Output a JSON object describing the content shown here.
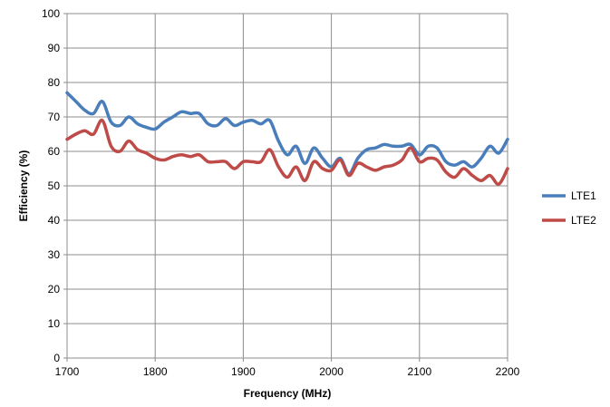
{
  "chart_data": {
    "type": "line",
    "title": "",
    "xlabel": "Frequency (MHz)",
    "ylabel": "Efficiency (%)",
    "xlim": [
      1700,
      2200
    ],
    "ylim": [
      0,
      100
    ],
    "x_ticks": [
      1700,
      1800,
      1900,
      2000,
      2100,
      2200
    ],
    "y_ticks": [
      0,
      10,
      20,
      30,
      40,
      50,
      60,
      70,
      80,
      90,
      100
    ],
    "grid": true,
    "legend_position": "right",
    "series": [
      {
        "name": "LTE1",
        "color": "#4a7ebb",
        "x": [
          1700,
          1710,
          1720,
          1730,
          1740,
          1750,
          1760,
          1770,
          1780,
          1790,
          1800,
          1810,
          1820,
          1830,
          1840,
          1850,
          1860,
          1870,
          1880,
          1890,
          1900,
          1910,
          1920,
          1930,
          1940,
          1950,
          1960,
          1970,
          1980,
          1990,
          2000,
          2010,
          2020,
          2030,
          2040,
          2050,
          2060,
          2070,
          2080,
          2090,
          2100,
          2110,
          2120,
          2130,
          2140,
          2150,
          2160,
          2170,
          2180,
          2190,
          2200
        ],
        "y": [
          77,
          74.5,
          72,
          71,
          74.5,
          68.5,
          67.5,
          70,
          68,
          67,
          66.5,
          68.5,
          70,
          71.5,
          71,
          71,
          68,
          67.5,
          69.5,
          67.5,
          68.5,
          69,
          68,
          69,
          63,
          59,
          61.5,
          56.5,
          61,
          58,
          55.5,
          58,
          53.5,
          58,
          60.5,
          61,
          62,
          61.5,
          61.5,
          62,
          59,
          61.5,
          61,
          57,
          56,
          57,
          55.5,
          58,
          61.5,
          59.5,
          63.5
        ]
      },
      {
        "name": "LTE2",
        "color": "#be4b48",
        "x": [
          1700,
          1710,
          1720,
          1730,
          1740,
          1750,
          1760,
          1770,
          1780,
          1790,
          1800,
          1810,
          1820,
          1830,
          1840,
          1850,
          1860,
          1870,
          1880,
          1890,
          1900,
          1910,
          1920,
          1930,
          1940,
          1950,
          1960,
          1970,
          1980,
          1990,
          2000,
          2010,
          2020,
          2030,
          2040,
          2050,
          2060,
          2070,
          2080,
          2090,
          2100,
          2110,
          2120,
          2130,
          2140,
          2150,
          2160,
          2170,
          2180,
          2190,
          2200
        ],
        "y": [
          63.5,
          65,
          66,
          65,
          69,
          61.5,
          60,
          63,
          60.5,
          59.5,
          58,
          57.5,
          58.5,
          59,
          58.5,
          59,
          57,
          57,
          57,
          55,
          57,
          57,
          57,
          60.5,
          55.5,
          52.5,
          55.5,
          51.5,
          57,
          55,
          54.5,
          57.5,
          53,
          56.5,
          55.5,
          54.5,
          55.5,
          56,
          57.5,
          61,
          57,
          58,
          57.5,
          54,
          52.5,
          55,
          53,
          51.5,
          53,
          50.5,
          55
        ]
      }
    ]
  }
}
